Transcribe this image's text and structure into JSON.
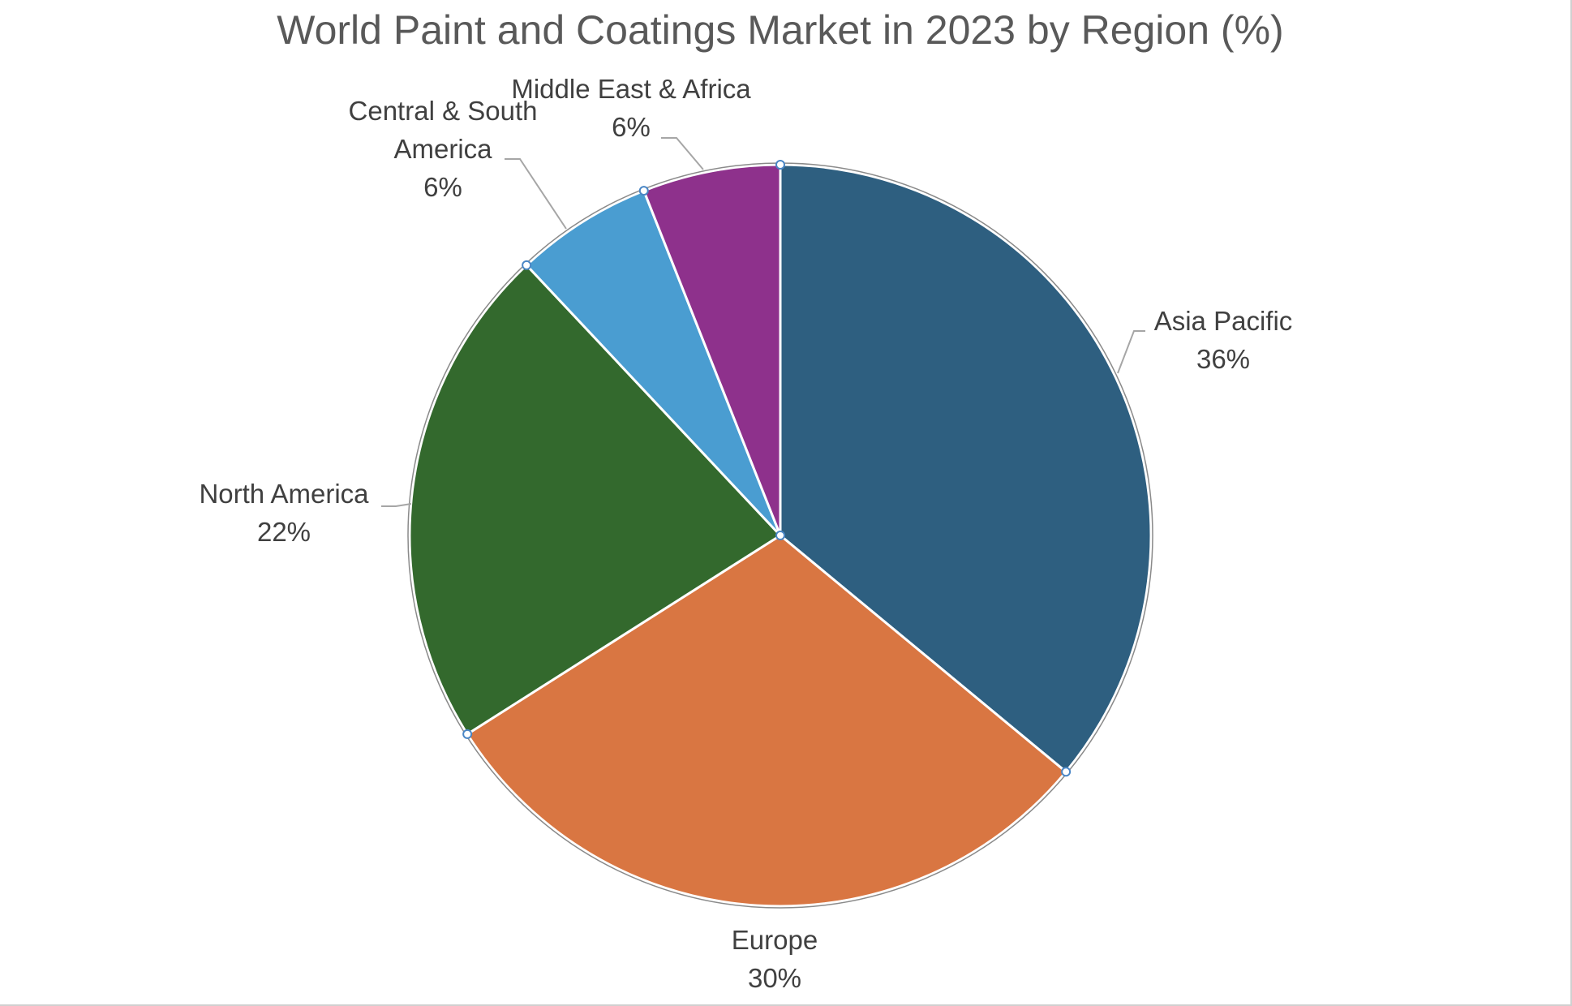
{
  "chart_data": {
    "type": "pie",
    "title": "World Paint and Coatings Market in 2023 by Region (%)",
    "categories": [
      "Asia Pacific",
      "Europe",
      "North America",
      "Central & South America",
      "Middle East & Africa"
    ],
    "values": [
      36,
      30,
      22,
      6,
      6
    ],
    "value_labels": [
      "36%",
      "30%",
      "22%",
      "6%",
      "6%"
    ],
    "label_lines": [
      [
        "Asia Pacific",
        "36%"
      ],
      [
        "Europe",
        "30%"
      ],
      [
        "North America",
        "22%"
      ],
      [
        "Central & South",
        "America",
        "6%"
      ],
      [
        "Middle East & Africa",
        "6%"
      ]
    ],
    "colors": [
      "#2e5f80",
      "#d97642",
      "#33692d",
      "#4a9dd1",
      "#8e318c"
    ],
    "legend": "none",
    "start_angle": "12 o'clock, clockwise"
  }
}
